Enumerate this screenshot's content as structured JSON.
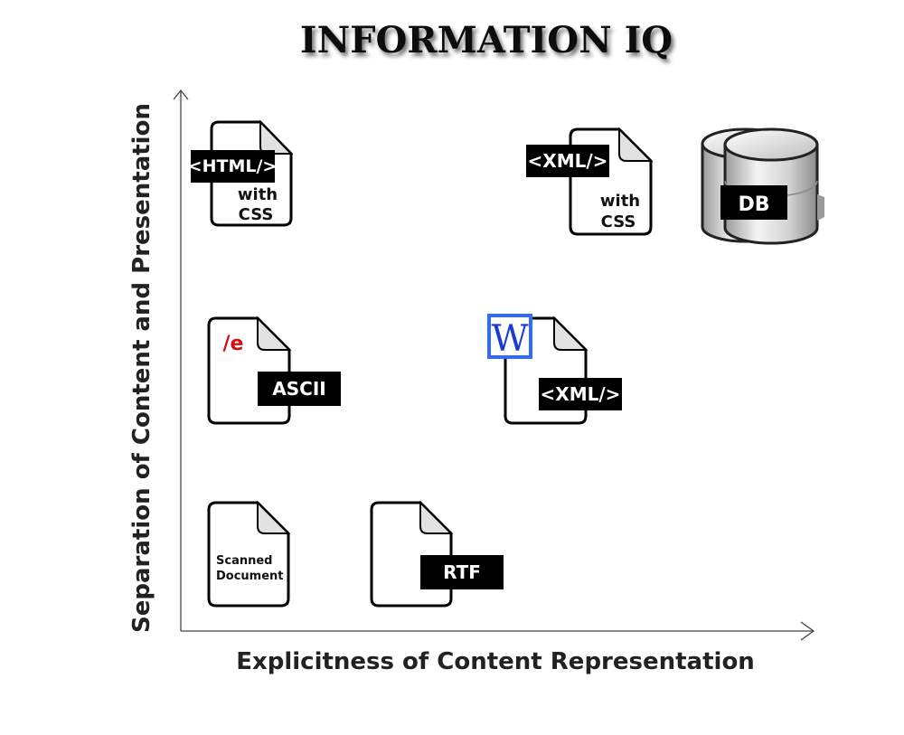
{
  "title": "INFORMATION IQ",
  "axes": {
    "x_label": "Explicitness of Content Representation",
    "y_label": "Separation of Content and Presentation"
  },
  "items": {
    "html_css": {
      "tag": "<HTML/>",
      "line1": "with",
      "line2": "CSS"
    },
    "xml_css": {
      "tag": "<XML/>",
      "line1": "with",
      "line2": "CSS"
    },
    "db": {
      "tag": "DB"
    },
    "ascii": {
      "mark": "/e",
      "tag": "ASCII"
    },
    "word_xml": {
      "mark": "W",
      "tag": "<XML/>"
    },
    "scanned": {
      "line1": "Scanned",
      "line2": "Document"
    },
    "rtf": {
      "tag": "RTF"
    }
  },
  "colors": {
    "tag_background": "#000000",
    "ascii_mark": "#d01010",
    "word_blue": "#1a3bd6",
    "word_frame": "#2f6bff",
    "db_silver": "#cfcfcf"
  }
}
